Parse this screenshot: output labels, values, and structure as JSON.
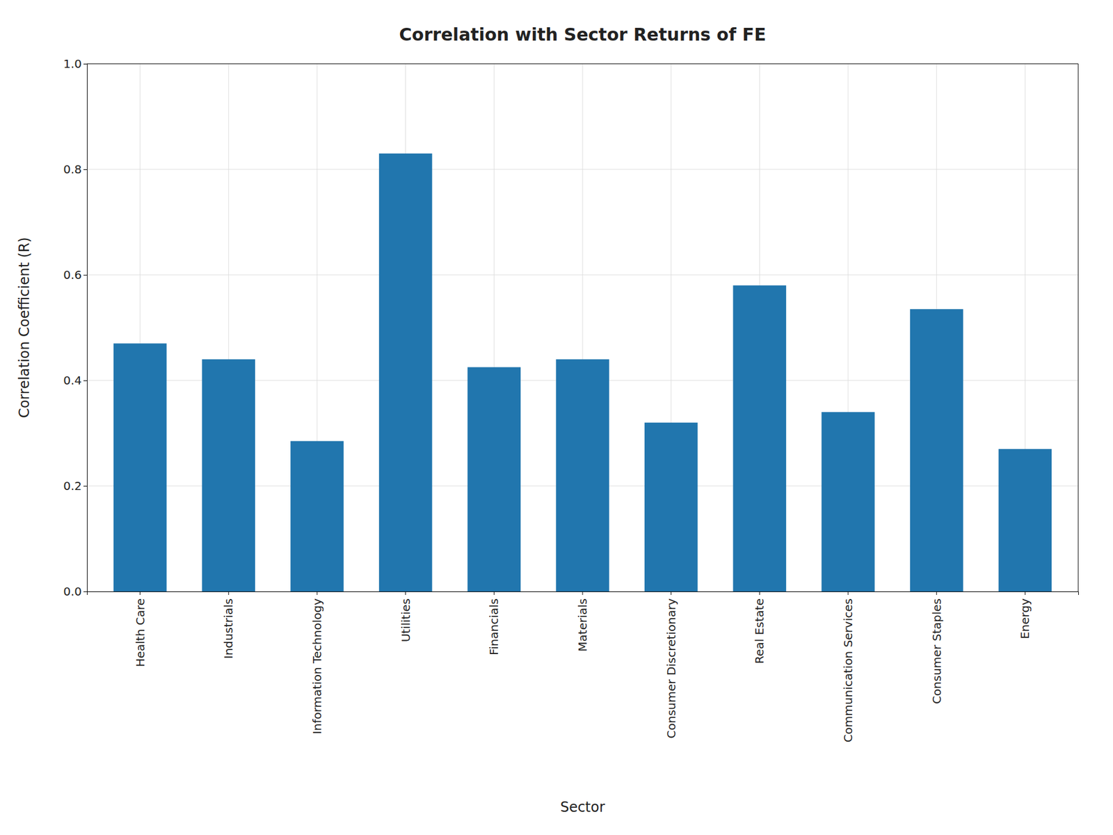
{
  "chart_data": {
    "type": "bar",
    "title": "Correlation with Sector Returns of FE",
    "xlabel": "Sector",
    "ylabel": "Correlation Coefficient (R)",
    "categories": [
      "Health Care",
      "Industrials",
      "Information Technology",
      "Utilities",
      "Financials",
      "Materials",
      "Consumer Discretionary",
      "Real Estate",
      "Communication Services",
      "Consumer Staples",
      "Energy"
    ],
    "values": [
      0.47,
      0.44,
      0.285,
      0.83,
      0.425,
      0.44,
      0.32,
      0.58,
      0.34,
      0.535,
      0.27
    ],
    "color": "#2176ae",
    "ylim": [
      0.0,
      1.0
    ],
    "yticks": [
      {
        "value": 0.0,
        "label": "0.0"
      },
      0.2,
      0.4,
      0.6,
      0.8,
      {
        "value": 1.0,
        "label": "1.0"
      }
    ],
    "grid": true
  }
}
